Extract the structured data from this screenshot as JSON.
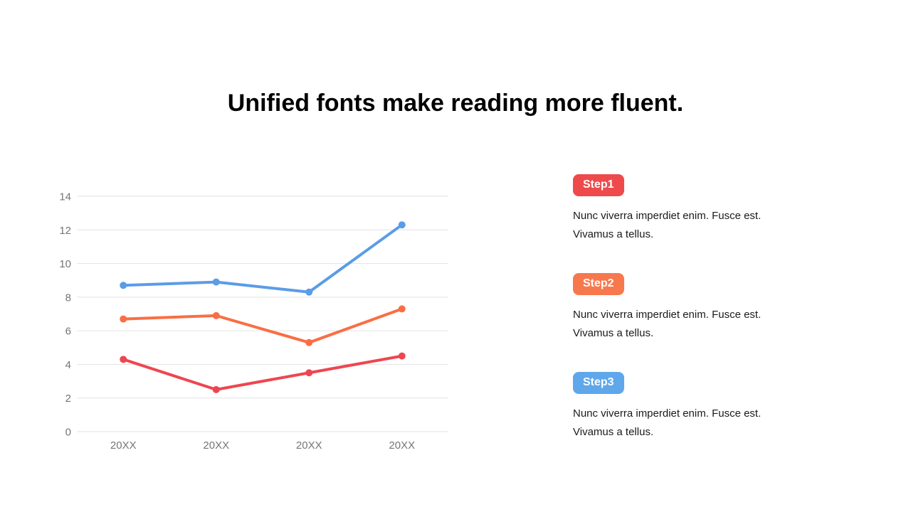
{
  "title": "Unified fonts make reading more fluent.",
  "chart_data": {
    "type": "line",
    "categories": [
      "20XX",
      "20XX",
      "20XX",
      "20XX"
    ],
    "series": [
      {
        "name": "blue-series",
        "color": "#5B9CE6",
        "values": [
          8.7,
          8.9,
          8.3,
          12.3
        ]
      },
      {
        "name": "orange-series",
        "color": "#FA6E44",
        "values": [
          6.7,
          6.9,
          5.3,
          7.3
        ]
      },
      {
        "name": "red-series",
        "color": "#EE4650",
        "values": [
          4.3,
          2.5,
          3.5,
          4.5
        ]
      }
    ],
    "title": "",
    "xlabel": "",
    "ylabel": "",
    "ylim": [
      0,
      14
    ],
    "ytick_step": 2,
    "grid": "horizontal",
    "legend": "none",
    "grid_color": "#E2E2E2",
    "axis_label_color": "#757575"
  },
  "steps": [
    {
      "label": "Step1",
      "color": "#EE4A4B",
      "text": "Nunc viverra imperdiet enim. Fusce est. Vivamus a tellus."
    },
    {
      "label": "Step2",
      "color": "#F8784E",
      "text": "Nunc viverra imperdiet enim. Fusce est. Vivamus a tellus."
    },
    {
      "label": "Step3",
      "color": "#5FA7EB",
      "text": "Nunc viverra imperdiet enim. Fusce est. Vivamus a tellus."
    }
  ]
}
